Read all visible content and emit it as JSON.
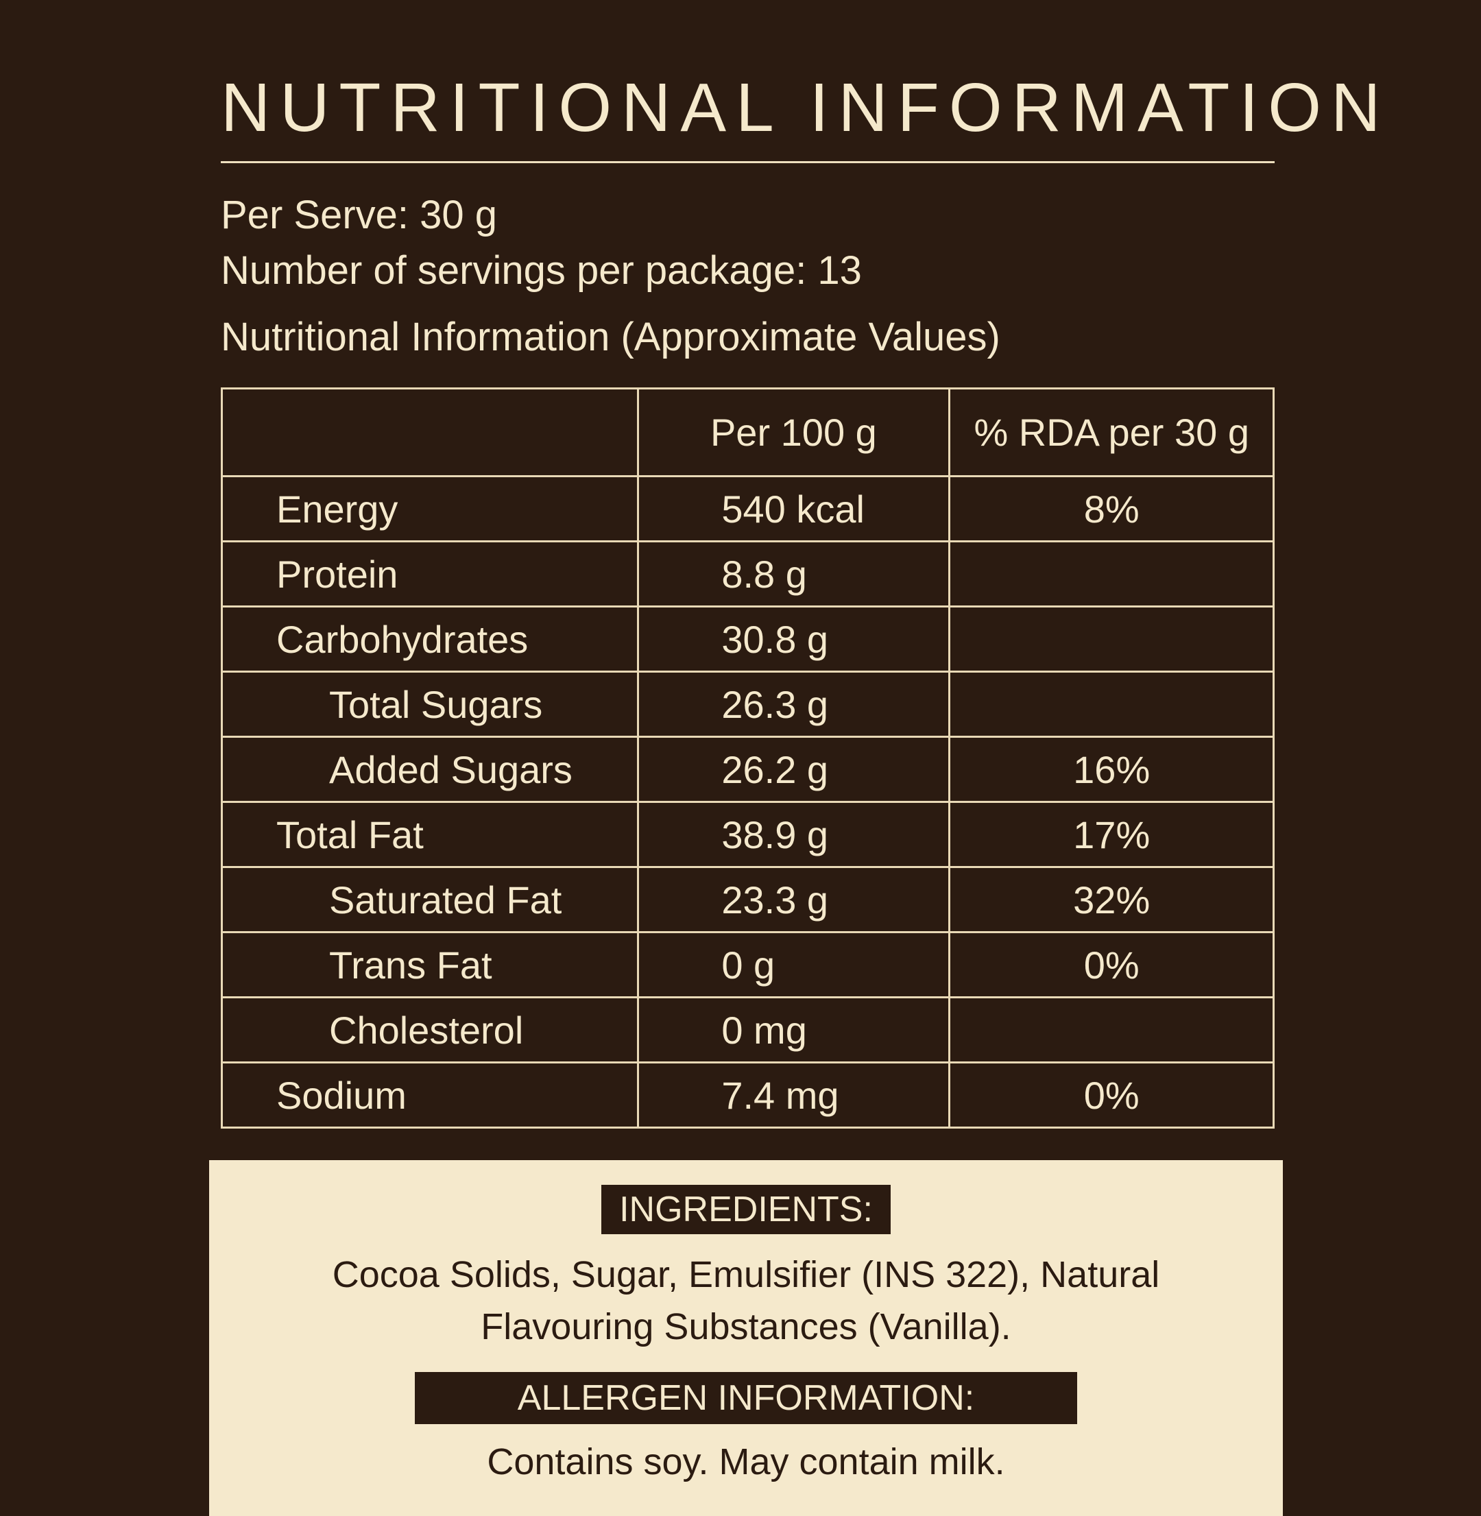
{
  "header": {
    "title": "NUTRITIONAL INFORMATION",
    "per_serve": "Per Serve: 30 g",
    "servings": "Number of servings per package: 13",
    "caption": "Nutritional Information (Approximate Values)"
  },
  "table": {
    "headers": [
      "",
      "Per 100 g",
      "% RDA per 30 g"
    ],
    "rows": [
      {
        "label": "Energy",
        "per100": "540 kcal",
        "rda": "8%"
      },
      {
        "label": "Protein",
        "per100": "8.8 g",
        "rda": ""
      },
      {
        "label": "Carbohydrates",
        "per100": "30.8 g",
        "rda": ""
      },
      {
        "label": "Total Sugars",
        "per100": "26.3 g",
        "rda": ""
      },
      {
        "label": "Added Sugars",
        "per100": "26.2 g",
        "rda": "16%"
      },
      {
        "label": "Total Fat",
        "per100": "38.9 g",
        "rda": "17%"
      },
      {
        "label": "Saturated Fat",
        "per100": "23.3 g",
        "rda": "32%"
      },
      {
        "label": "Trans Fat",
        "per100": "0 g",
        "rda": "0%"
      },
      {
        "label": "Cholesterol",
        "per100": "0 mg",
        "rda": ""
      },
      {
        "label": "Sodium",
        "per100": "7.4 mg",
        "rda": "0%"
      }
    ]
  },
  "footer": {
    "ingredients_title": "INGREDIENTS:",
    "ingredients_text": "Cocoa Solids, Sugar, Emulsifier (INS 322), Natural Flavouring Substances (Vanilla).",
    "allergen_title": "ALLERGEN INFORMATION:",
    "allergen_text": "Contains soy. May contain milk."
  },
  "colors": {
    "background": "#2b1b11",
    "cream": "#f5e9cc",
    "table_border": "#e9d9b6"
  }
}
